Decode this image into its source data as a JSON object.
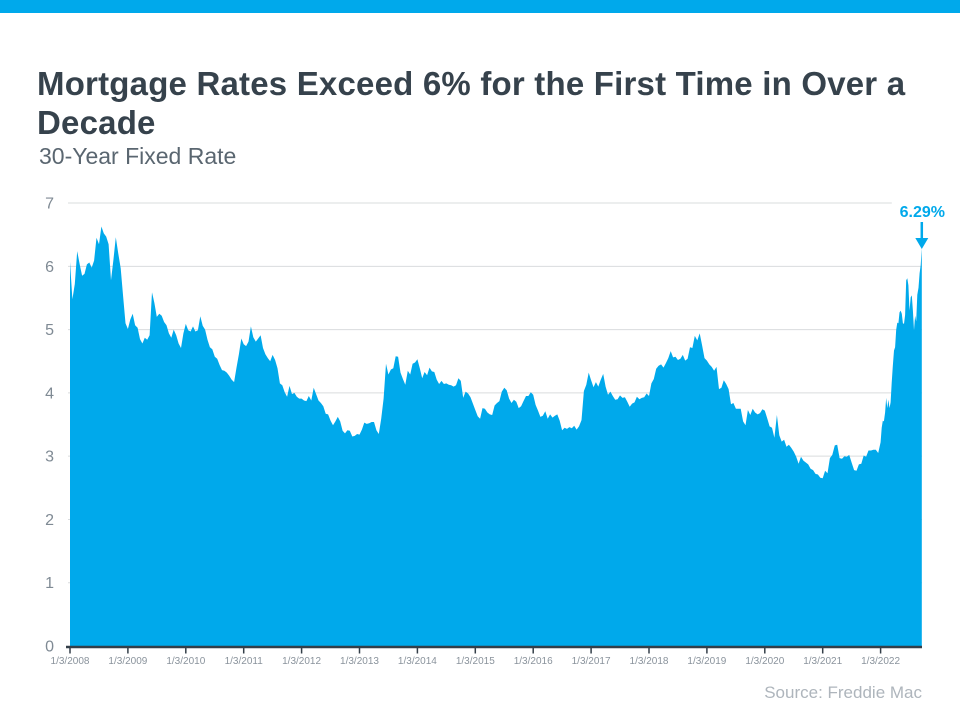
{
  "page": {
    "title": "Mortgage Rates Exceed 6% for the First Time in Over a Decade",
    "subtitle": "30-Year Fixed Rate",
    "source": "Source: Freddie Mac"
  },
  "colors": {
    "brand_blue": "#00A9EB",
    "area_fill": "#00A9EB",
    "title_text": "#36424C",
    "subtitle_text": "#5A6670",
    "axis_label_text": "#7F8A94",
    "tick_label_text": "#8A939C",
    "gridline": "#D9DCDE",
    "axis_line": "#333E48",
    "source_text": "#AEB5BC",
    "annotation_text": "#00A9EB"
  },
  "chart_data": {
    "type": "area",
    "title": "30-Year Fixed Rate",
    "xlabel": "",
    "ylabel": "",
    "ylim": [
      0,
      7
    ],
    "yticks": [
      "0",
      "1",
      "2",
      "3",
      "4",
      "5",
      "6",
      "7"
    ],
    "grid": true,
    "xtick_labels": [
      "1/3/2008",
      "1/3/2009",
      "1/3/2010",
      "1/3/2011",
      "1/3/2012",
      "1/3/2013",
      "1/3/2014",
      "1/3/2015",
      "1/3/2016",
      "1/3/2017",
      "1/3/2018",
      "1/3/2019",
      "1/3/2020",
      "1/3/2021",
      "1/3/2022"
    ],
    "x_start_year": 2008,
    "annotation": {
      "label": "6.29%",
      "value": 6.29
    },
    "series": [
      {
        "name": "30-Year Fixed Rate",
        "points_by_year": [
          {
            "year": 2008,
            "samples_per_year": 24,
            "values": [
              6.07,
              5.48,
              5.72,
              6.24,
              6.03,
              5.85,
              5.88,
              6.03,
              6.06,
              5.98,
              6.09,
              6.45,
              6.35,
              6.63,
              6.52,
              6.47,
              6.35,
              5.78,
              6.1,
              6.46,
              6.2,
              5.97,
              5.53,
              5.1
            ]
          },
          {
            "year": 2009,
            "samples_per_year": 24,
            "values": [
              5.01,
              5.16,
              5.25,
              5.07,
              5.03,
              4.85,
              4.78,
              4.87,
              4.84,
              4.91,
              5.59,
              5.42,
              5.2,
              5.25,
              5.22,
              5.12,
              5.07,
              4.94,
              4.87,
              5.0,
              4.91,
              4.78,
              4.71,
              4.94
            ]
          },
          {
            "year": 2010,
            "samples_per_year": 24,
            "values": [
              5.09,
              4.99,
              4.97,
              5.05,
              4.97,
              4.99,
              5.21,
              5.06,
              5.0,
              4.84,
              4.72,
              4.69,
              4.57,
              4.54,
              4.44,
              4.36,
              4.35,
              4.32,
              4.27,
              4.21,
              4.17,
              4.4,
              4.61,
              4.86
            ]
          },
          {
            "year": 2011,
            "samples_per_year": 24,
            "values": [
              4.77,
              4.74,
              4.81,
              5.05,
              4.88,
              4.81,
              4.86,
              4.91,
              4.71,
              4.61,
              4.55,
              4.5,
              4.6,
              4.52,
              4.39,
              4.15,
              4.12,
              4.01,
              3.94,
              4.11,
              3.98,
              4.0,
              3.94,
              3.91
            ]
          },
          {
            "year": 2012,
            "samples_per_year": 24,
            "values": [
              3.91,
              3.88,
              3.87,
              3.95,
              3.88,
              4.08,
              3.98,
              3.88,
              3.84,
              3.79,
              3.67,
              3.66,
              3.56,
              3.49,
              3.55,
              3.62,
              3.55,
              3.4,
              3.36,
              3.41,
              3.4,
              3.31,
              3.32,
              3.35
            ]
          },
          {
            "year": 2013,
            "samples_per_year": 24,
            "values": [
              3.34,
              3.42,
              3.53,
              3.51,
              3.52,
              3.54,
              3.54,
              3.41,
              3.35,
              3.59,
              3.91,
              4.46,
              4.29,
              4.37,
              4.39,
              4.58,
              4.57,
              4.32,
              4.22,
              4.13,
              4.35,
              4.29,
              4.46,
              4.48
            ]
          },
          {
            "year": 2014,
            "samples_per_year": 24,
            "values": [
              4.53,
              4.39,
              4.23,
              4.33,
              4.28,
              4.4,
              4.34,
              4.33,
              4.21,
              4.14,
              4.19,
              4.14,
              4.15,
              4.13,
              4.12,
              4.1,
              4.12,
              4.23,
              4.19,
              3.92,
              4.02,
              3.99,
              3.93,
              3.83
            ]
          },
          {
            "year": 2015,
            "samples_per_year": 24,
            "values": [
              3.73,
              3.63,
              3.59,
              3.76,
              3.75,
              3.69,
              3.66,
              3.65,
              3.8,
              3.84,
              3.87,
              4.02,
              4.08,
              4.04,
              3.91,
              3.84,
              3.89,
              3.86,
              3.76,
              3.79,
              3.87,
              3.95,
              3.95,
              4.01
            ]
          },
          {
            "year": 2016,
            "samples_per_year": 24,
            "values": [
              3.97,
              3.81,
              3.72,
              3.62,
              3.64,
              3.71,
              3.59,
              3.66,
              3.61,
              3.64,
              3.66,
              3.56,
              3.41,
              3.45,
              3.43,
              3.46,
              3.44,
              3.48,
              3.42,
              3.47,
              3.57,
              4.03,
              4.13,
              4.32
            ]
          },
          {
            "year": 2017,
            "samples_per_year": 24,
            "values": [
              4.2,
              4.09,
              4.17,
              4.1,
              4.21,
              4.3,
              4.1,
              3.97,
              4.02,
              3.95,
              3.89,
              3.9,
              3.96,
              3.92,
              3.93,
              3.86,
              3.78,
              3.83,
              3.85,
              3.94,
              3.9,
              3.92,
              3.93,
              3.99
            ]
          },
          {
            "year": 2018,
            "samples_per_year": 24,
            "values": [
              3.95,
              4.15,
              4.22,
              4.38,
              4.43,
              4.45,
              4.4,
              4.47,
              4.55,
              4.66,
              4.56,
              4.57,
              4.52,
              4.54,
              4.6,
              4.51,
              4.54,
              4.72,
              4.71,
              4.9,
              4.83,
              4.94,
              4.75,
              4.55
            ]
          },
          {
            "year": 2019,
            "samples_per_year": 24,
            "values": [
              4.51,
              4.45,
              4.41,
              4.35,
              4.41,
              4.06,
              4.08,
              4.2,
              4.14,
              4.06,
              3.82,
              3.84,
              3.75,
              3.75,
              3.75,
              3.55,
              3.49,
              3.73,
              3.65,
              3.75,
              3.69,
              3.66,
              3.68,
              3.74
            ]
          },
          {
            "year": 2020,
            "samples_per_year": 24,
            "values": [
              3.72,
              3.6,
              3.47,
              3.45,
              3.29,
              3.65,
              3.33,
              3.23,
              3.26,
              3.15,
              3.18,
              3.13,
              3.07,
              2.99,
              2.88,
              2.99,
              2.93,
              2.9,
              2.87,
              2.8,
              2.78,
              2.72,
              2.71,
              2.66
            ]
          },
          {
            "year": 2021,
            "samples_per_year": 24,
            "values": [
              2.65,
              2.77,
              2.73,
              2.97,
              3.02,
              3.17,
              3.18,
              2.97,
              2.96,
              3.0,
              2.99,
              3.02,
              2.9,
              2.78,
              2.77,
              2.87,
              2.88,
              3.01,
              2.99,
              3.09,
              3.09,
              3.1,
              3.1,
              3.05
            ]
          },
          {
            "year": 2022,
            "samples_per_year": 52,
            "values": [
              3.22,
              3.45,
              3.56,
              3.55,
              3.69,
              3.92,
              3.76,
              3.89,
              3.76,
              3.85,
              4.16,
              4.42,
              4.67,
              4.72,
              5.0,
              5.11,
              5.1,
              5.27,
              5.3,
              5.25,
              5.1,
              5.09,
              5.23,
              5.78,
              5.81,
              5.7,
              5.3,
              5.51,
              5.54,
              5.3,
              4.99,
              5.22,
              5.13,
              5.55,
              5.66,
              5.89,
              6.02,
              6.29
            ]
          }
        ]
      }
    ]
  }
}
